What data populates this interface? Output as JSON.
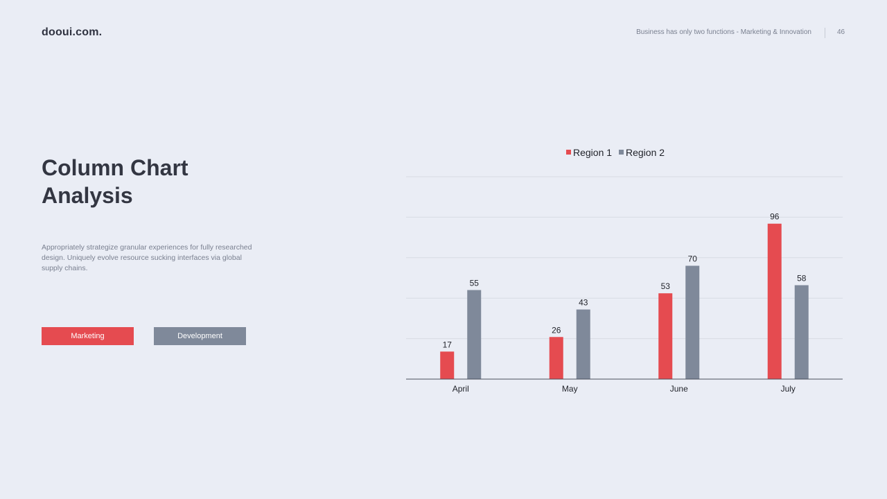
{
  "header": {
    "logo": "dooui.com.",
    "tagline": "Business has only two functions - Marketing & Innovation",
    "page_number": "46"
  },
  "main": {
    "title_lines": [
      "Column Chart",
      "Analysis"
    ],
    "description_lines": [
      "Appropriately strategize granular experiences for fully researched",
      "design. Uniquely  evolve resource sucking interfaces via global",
      "supply chains."
    ],
    "buttons": {
      "marketing": "Marketing",
      "development": "Development"
    }
  },
  "colors": {
    "region1": "#e54b50",
    "region2": "#7f899a",
    "background": "#eaedf5"
  },
  "chart_data": {
    "type": "bar",
    "categories": [
      "April",
      "May",
      "June",
      "July"
    ],
    "series": [
      {
        "name": "Region 1",
        "values": [
          17,
          26,
          53,
          96
        ],
        "color": "#e54b50"
      },
      {
        "name": "Region 2",
        "values": [
          55,
          43,
          70,
          58
        ],
        "color": "#7f899a"
      }
    ],
    "ylim": [
      0,
      125
    ],
    "grid": true,
    "legend": "top-center",
    "data_labels": true
  }
}
